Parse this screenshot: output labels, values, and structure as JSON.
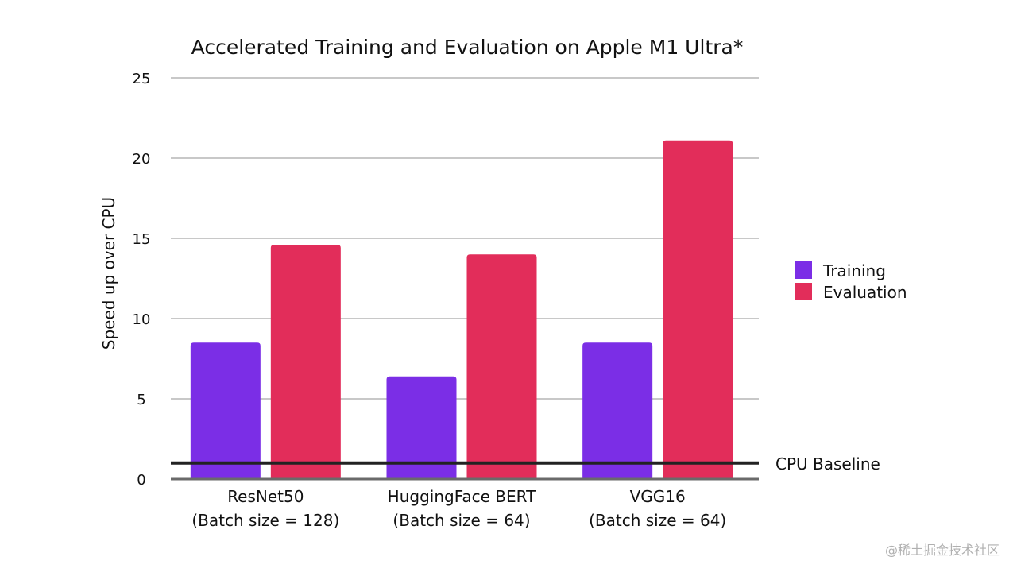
{
  "chart_data": {
    "type": "bar",
    "title": "Accelerated Training and Evaluation on Apple M1 Ultra*",
    "xlabel": "",
    "ylabel": "Speed up over CPU",
    "ylim": [
      0,
      25
    ],
    "yticks": [
      0,
      5,
      10,
      15,
      20,
      25
    ],
    "grid": true,
    "legend": "right",
    "categories": [
      [
        "ResNet50",
        "(Batch size = 128)"
      ],
      [
        "HuggingFace BERT",
        "(Batch size = 64)"
      ],
      [
        "VGG16",
        "(Batch size = 64)"
      ]
    ],
    "series": [
      {
        "name": "Training",
        "color": "#7b2ee6",
        "values": [
          8.5,
          6.4,
          8.5
        ]
      },
      {
        "name": "Evaluation",
        "color": "#e22d5a",
        "values": [
          14.6,
          14.0,
          21.1
        ]
      }
    ],
    "baseline": {
      "label": "CPU Baseline",
      "value": 1
    }
  },
  "watermark": "@稀土掘金技术社区"
}
